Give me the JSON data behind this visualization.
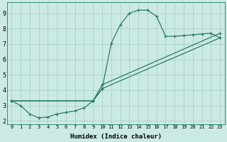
{
  "line1_x": [
    0,
    1,
    2,
    3,
    4,
    5,
    6,
    7,
    8,
    9,
    10,
    11,
    12,
    13,
    14,
    15,
    16,
    17,
    18,
    19,
    20,
    21,
    22,
    23
  ],
  "line1_y": [
    3.3,
    3.0,
    2.45,
    2.2,
    2.25,
    2.45,
    2.55,
    2.65,
    2.85,
    3.3,
    4.1,
    7.05,
    8.25,
    9.0,
    9.2,
    9.2,
    8.8,
    7.5,
    7.5,
    7.55,
    7.6,
    7.65,
    7.7,
    7.4
  ],
  "line2_x": [
    0,
    9,
    10,
    23
  ],
  "line2_y": [
    3.3,
    3.3,
    4.1,
    7.4
  ],
  "line3_x": [
    0,
    9,
    10,
    23
  ],
  "line3_y": [
    3.3,
    3.3,
    4.35,
    7.7
  ],
  "line_color": "#2a7a6a",
  "bg_color": "#cceae4",
  "grid_color": "#aacfc8",
  "xlabel": "Humidex (Indice chaleur)",
  "xlim": [
    -0.5,
    23.5
  ],
  "ylim": [
    1.8,
    9.7
  ],
  "yticks": [
    2,
    3,
    4,
    5,
    6,
    7,
    8,
    9
  ],
  "xticks": [
    0,
    1,
    2,
    3,
    4,
    5,
    6,
    7,
    8,
    9,
    10,
    11,
    12,
    13,
    14,
    15,
    16,
    17,
    18,
    19,
    20,
    21,
    22,
    23
  ]
}
